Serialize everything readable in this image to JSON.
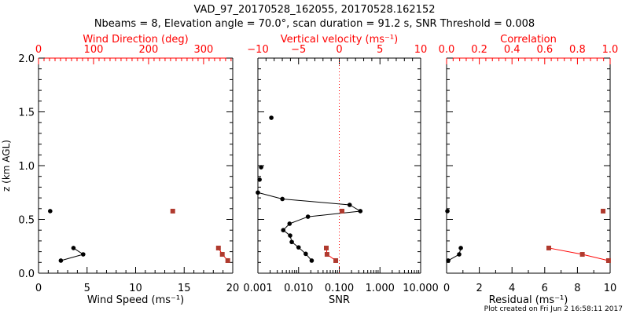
{
  "title": "VAD_97_20170528_162055, 20170528.162152",
  "subtitle": "Nbeams = 8, Elevation angle = 70.0°, scan duration = 91.2 s, SNR Threshold = 0.008",
  "footer": "Plot created on Fri Jun  2 16:58:11 2017",
  "colors": {
    "axis": "#000000",
    "secondary": "#ff0000",
    "secondary_points": "#b03a2e"
  },
  "chart_data": [
    {
      "type": "line",
      "ylabel": "z (km AGL)",
      "ylim": [
        0,
        2
      ],
      "yticks": [
        "0.0",
        "0.5",
        "1.0",
        "1.5",
        "2.0"
      ],
      "xlabel": "Wind Speed (ms⁻¹)",
      "xlim": [
        0,
        20
      ],
      "xticks": [
        "0",
        "5",
        "10",
        "15",
        "20"
      ],
      "top_xlabel": "Wind Direction (deg)",
      "top_xlim": [
        0,
        353
      ],
      "top_xticks": [
        "0",
        "100",
        "200",
        "300"
      ],
      "series": [
        {
          "name": "Wind Speed",
          "axis": "bottom",
          "z": [
            0.577,
            0.234,
            0.175,
            0.117
          ],
          "x": [
            1.2,
            3.6,
            4.6,
            2.3
          ]
        },
        {
          "name": "Wind Direction",
          "axis": "top",
          "z": [
            0.577,
            0.234,
            0.175,
            0.117
          ],
          "x": [
            244,
            327,
            334,
            344
          ]
        }
      ]
    },
    {
      "type": "line",
      "xlabel": "SNR",
      "xscale": "log",
      "xlim": [
        0.001,
        10
      ],
      "xticks": [
        "0.001",
        "0.010",
        "0.100",
        "1.000",
        "10.000"
      ],
      "top_xlabel": "Vertical velocity (ms⁻¹)",
      "top_xlim": [
        -10,
        10
      ],
      "top_xticks": [
        "−10",
        "−5",
        "0",
        "5",
        "10"
      ],
      "reference_line": {
        "snr": 0.1,
        "style": "dotted"
      },
      "series": [
        {
          "name": "SNR",
          "axis": "bottom",
          "z": [
            1.445,
            0.985,
            0.87,
            0.75,
            0.69,
            0.635,
            0.577,
            0.525,
            0.46,
            0.4,
            0.35,
            0.29,
            0.24,
            0.18,
            0.117
          ],
          "x": [
            0.00214,
            0.0012,
            0.0011,
            0.001,
            0.004,
            0.18,
            0.33,
            0.017,
            0.006,
            0.0042,
            0.0062,
            0.0068,
            0.01,
            0.015,
            0.021
          ]
        },
        {
          "name": "SNR (valid)",
          "axis": "bottom",
          "z": [
            0.577,
            0.234,
            0.175,
            0.117
          ],
          "x": [
            0.117,
            0.048,
            0.05,
            0.082
          ]
        }
      ]
    },
    {
      "type": "line",
      "xlabel": "Residual (ms⁻¹)",
      "xlim": [
        0,
        10
      ],
      "xticks": [
        "0",
        "2",
        "4",
        "6",
        "8",
        "10"
      ],
      "top_xlabel": "Correlation",
      "top_xlim": [
        0,
        1
      ],
      "top_xticks": [
        "0.0",
        "0.2",
        "0.4",
        "0.6",
        "0.8",
        "1.0"
      ],
      "series": [
        {
          "name": "Residual",
          "axis": "bottom",
          "z": [
            0.577,
            0.234,
            0.175,
            0.117
          ],
          "x": [
            0.05,
            0.87,
            0.77,
            0.1
          ]
        },
        {
          "name": "Correlation",
          "axis": "top",
          "z": [
            0.577,
            0.234,
            0.175,
            0.117
          ],
          "x": [
            0.957,
            0.625,
            0.83,
            0.99
          ]
        }
      ]
    }
  ]
}
